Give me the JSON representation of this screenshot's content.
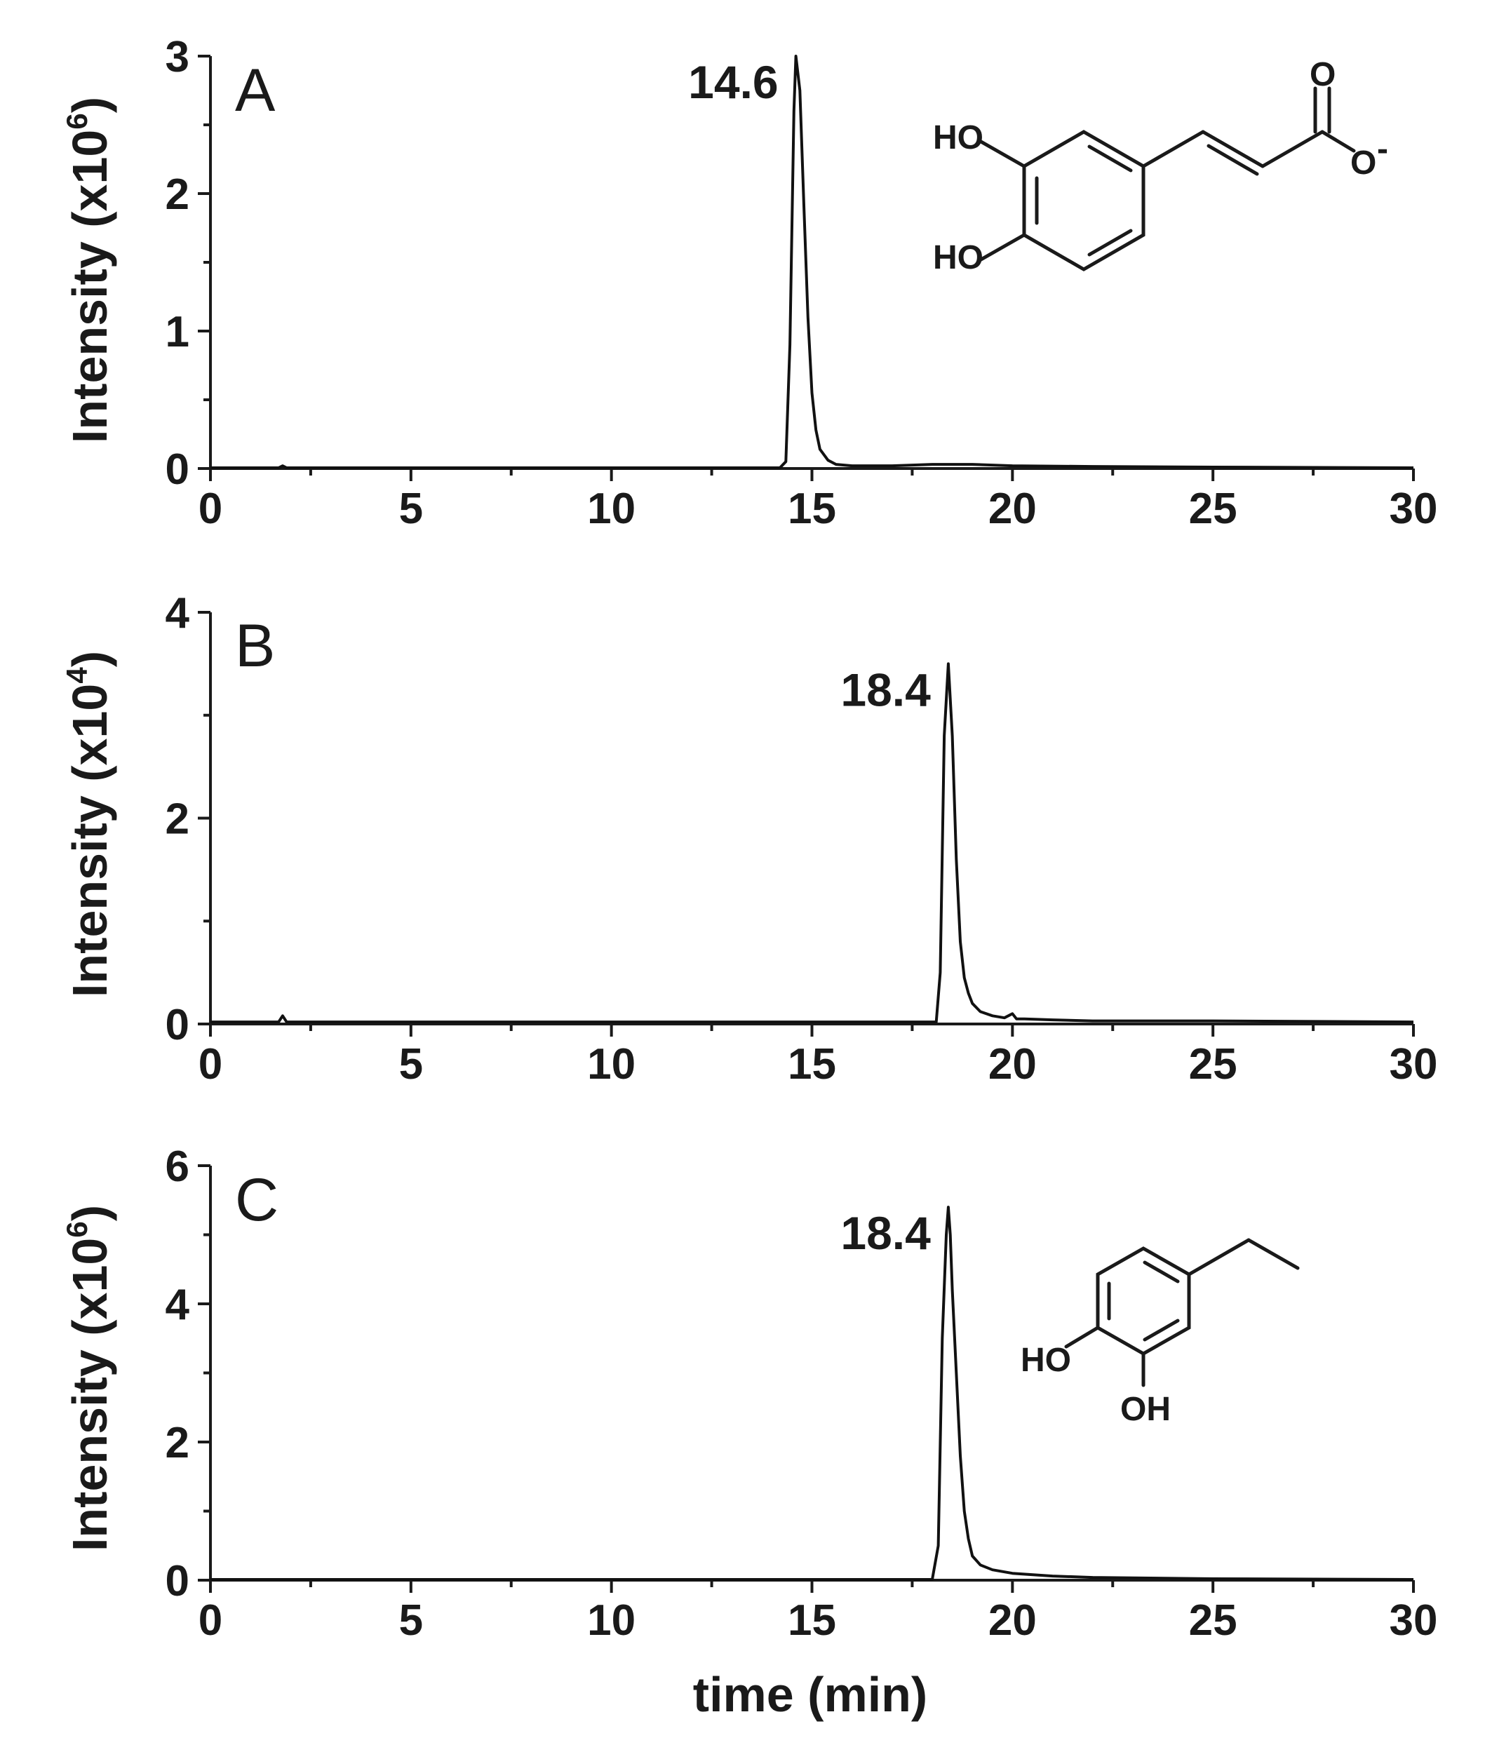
{
  "chart_data": [
    {
      "type": "line",
      "panel": "A",
      "ylabel_main": "Intensity (x10",
      "ylabel_exp": "6",
      "ylabel_close": ")",
      "xlim": [
        0,
        30
      ],
      "ylim": [
        0,
        3
      ],
      "xticks": [
        "0",
        "5",
        "10",
        "15",
        "20",
        "25",
        "30"
      ],
      "yticks": [
        "0",
        "1",
        "2",
        "3"
      ],
      "peak_label": "14.6",
      "peak_time": 14.6,
      "peak_height": 3.0,
      "series": [
        {
          "x": [
            0,
            1.7,
            1.8,
            1.9,
            14.2,
            14.35,
            14.45,
            14.55,
            14.6,
            14.7,
            14.8,
            14.9,
            15.0,
            15.1,
            15.2,
            15.4,
            15.6,
            16,
            17,
            18,
            19,
            20,
            22,
            25,
            30
          ],
          "y": [
            0.005,
            0.005,
            0.02,
            0.005,
            0.005,
            0.05,
            0.9,
            2.6,
            3.0,
            2.75,
            1.9,
            1.1,
            0.55,
            0.28,
            0.14,
            0.06,
            0.03,
            0.02,
            0.02,
            0.03,
            0.03,
            0.02,
            0.015,
            0.01,
            0.005
          ]
        }
      ],
      "structure": {
        "labels": [
          "HO",
          "HO",
          "O",
          "O",
          "-"
        ]
      }
    },
    {
      "type": "line",
      "panel": "B",
      "ylabel_main": "Intensity (x10",
      "ylabel_exp": "4",
      "ylabel_close": ")",
      "xlim": [
        0,
        30
      ],
      "ylim": [
        0,
        4
      ],
      "xticks": [
        "0",
        "5",
        "10",
        "15",
        "20",
        "25",
        "30"
      ],
      "yticks": [
        "0",
        "2",
        "4"
      ],
      "peak_label": "18.4",
      "peak_time": 18.4,
      "peak_height": 3.5,
      "series": [
        {
          "x": [
            0,
            1.7,
            1.8,
            1.9,
            18.1,
            18.2,
            18.3,
            18.4,
            18.5,
            18.6,
            18.7,
            18.8,
            18.9,
            19.0,
            19.2,
            19.5,
            19.8,
            20.0,
            20.1,
            20.3,
            21,
            22,
            25,
            30
          ],
          "y": [
            0.02,
            0.02,
            0.08,
            0.02,
            0.02,
            0.5,
            2.8,
            3.5,
            2.8,
            1.6,
            0.8,
            0.45,
            0.3,
            0.2,
            0.12,
            0.08,
            0.06,
            0.1,
            0.05,
            0.05,
            0.04,
            0.03,
            0.03,
            0.02
          ]
        }
      ]
    },
    {
      "type": "line",
      "panel": "C",
      "ylabel_main": "Intensity (x10",
      "ylabel_exp": "6",
      "ylabel_close": ")",
      "xlabel": "time (min)",
      "xlim": [
        0,
        30
      ],
      "ylim": [
        0,
        6
      ],
      "xticks": [
        "0",
        "5",
        "10",
        "15",
        "20",
        "25",
        "30"
      ],
      "yticks": [
        "0",
        "2",
        "4",
        "6"
      ],
      "peak_label": "18.4",
      "peak_time": 18.4,
      "peak_height": 5.4,
      "series": [
        {
          "x": [
            0,
            18.0,
            18.15,
            18.25,
            18.35,
            18.4,
            18.45,
            18.5,
            18.6,
            18.7,
            18.8,
            18.9,
            19.0,
            19.2,
            19.5,
            20,
            21,
            22,
            25,
            30
          ],
          "y": [
            0.01,
            0.01,
            0.5,
            3.5,
            5.0,
            5.4,
            5.0,
            4.2,
            3.0,
            1.8,
            1.0,
            0.6,
            0.35,
            0.22,
            0.15,
            0.1,
            0.06,
            0.04,
            0.02,
            0.01
          ]
        }
      ],
      "structure": {
        "labels": [
          "HO",
          "OH"
        ]
      }
    }
  ]
}
